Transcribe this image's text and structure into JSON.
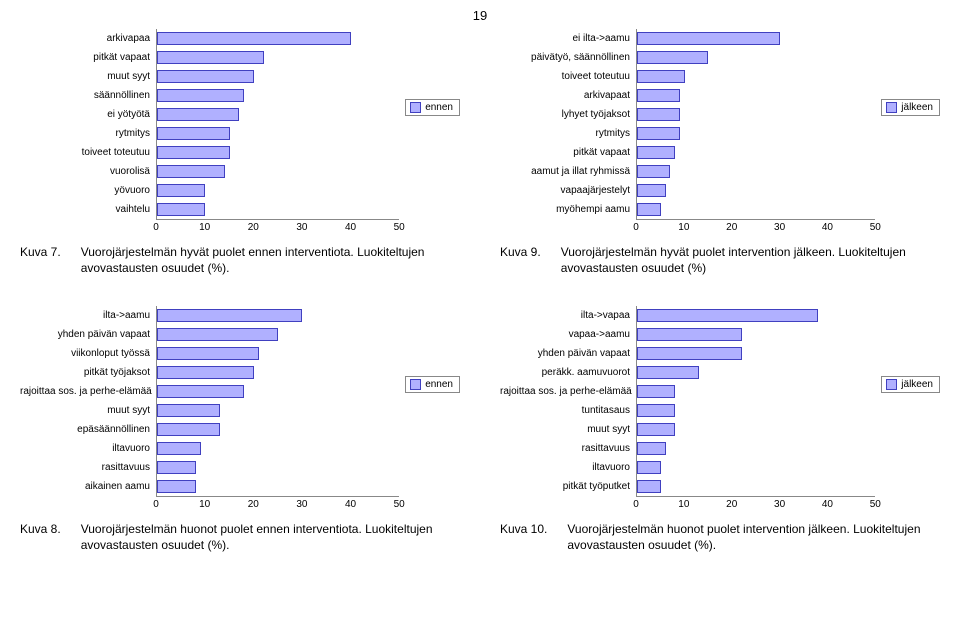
{
  "page_number": "19",
  "bar_color": "#b0b0ff",
  "bar_border": "#4040c0",
  "axis_color": "#888888",
  "xmax": 50,
  "xtick_step": 10,
  "charts": [
    {
      "legend": "ennen",
      "caption_key": "Kuva 7.",
      "caption_text": "Vuorojärjestelmän hyvät puolet ennen interventiota. Luokiteltujen avovastausten osuudet (%).",
      "rows": [
        {
          "label": "arkivapaa",
          "value": 40
        },
        {
          "label": "pitkät vapaat",
          "value": 22
        },
        {
          "label": "muut syyt",
          "value": 20
        },
        {
          "label": "säännöllinen",
          "value": 18
        },
        {
          "label": "ei yötyötä",
          "value": 17
        },
        {
          "label": "rytmitys",
          "value": 15
        },
        {
          "label": "toiveet toteutuu",
          "value": 15
        },
        {
          "label": "vuorolisä",
          "value": 14
        },
        {
          "label": "yövuoro",
          "value": 10
        },
        {
          "label": "vaihtelu",
          "value": 10
        }
      ]
    },
    {
      "legend": "jälkeen",
      "caption_key": "Kuva 9.",
      "caption_text": "Vuorojärjestelmän hyvät puolet intervention jälkeen. Luokiteltujen avovastausten osuudet (%)",
      "rows": [
        {
          "label": "ei ilta->aamu",
          "value": 30
        },
        {
          "label": "päivätyö, säännöllinen",
          "value": 15
        },
        {
          "label": "toiveet toteutuu",
          "value": 10
        },
        {
          "label": "arkivapaat",
          "value": 9
        },
        {
          "label": "lyhyet työjaksot",
          "value": 9
        },
        {
          "label": "rytmitys",
          "value": 9
        },
        {
          "label": "pitkät vapaat",
          "value": 8
        },
        {
          "label": "aamut ja illat ryhmissä",
          "value": 7
        },
        {
          "label": "vapaajärjestelyt",
          "value": 6
        },
        {
          "label": "myöhempi aamu",
          "value": 5
        }
      ]
    },
    {
      "legend": "ennen",
      "caption_key": "Kuva 8.",
      "caption_text": "Vuorojärjestelmän huonot puolet ennen interventiota. Luokiteltujen avovastausten osuudet (%).",
      "rows": [
        {
          "label": "ilta->aamu",
          "value": 30
        },
        {
          "label": "yhden päivän vapaat",
          "value": 25
        },
        {
          "label": "viikonloput työssä",
          "value": 21
        },
        {
          "label": "pitkät työjaksot",
          "value": 20
        },
        {
          "label": "rajoittaa sos. ja perhe-elämää",
          "value": 18
        },
        {
          "label": "muut syyt",
          "value": 13
        },
        {
          "label": "epäsäännöllinen",
          "value": 13
        },
        {
          "label": "iltavuoro",
          "value": 9
        },
        {
          "label": "rasittavuus",
          "value": 8
        },
        {
          "label": "aikainen aamu",
          "value": 8
        }
      ]
    },
    {
      "legend": "jälkeen",
      "caption_key": "Kuva 10.",
      "caption_text": "Vuorojärjestelmän huonot puolet intervention jälkeen. Luokiteltujen avovastausten osuudet (%).",
      "rows": [
        {
          "label": "ilta->vapaa",
          "value": 38
        },
        {
          "label": "vapaa->aamu",
          "value": 22
        },
        {
          "label": "yhden päivän vapaat",
          "value": 22
        },
        {
          "label": "peräkk. aamuvuorot",
          "value": 13
        },
        {
          "label": "rajoittaa sos. ja perhe-elämää",
          "value": 8
        },
        {
          "label": "tuntitasaus",
          "value": 8
        },
        {
          "label": "muut syyt",
          "value": 8
        },
        {
          "label": "rasittavuus",
          "value": 6
        },
        {
          "label": "iltavuoro",
          "value": 5
        },
        {
          "label": "pitkät työputket",
          "value": 5
        }
      ]
    }
  ]
}
